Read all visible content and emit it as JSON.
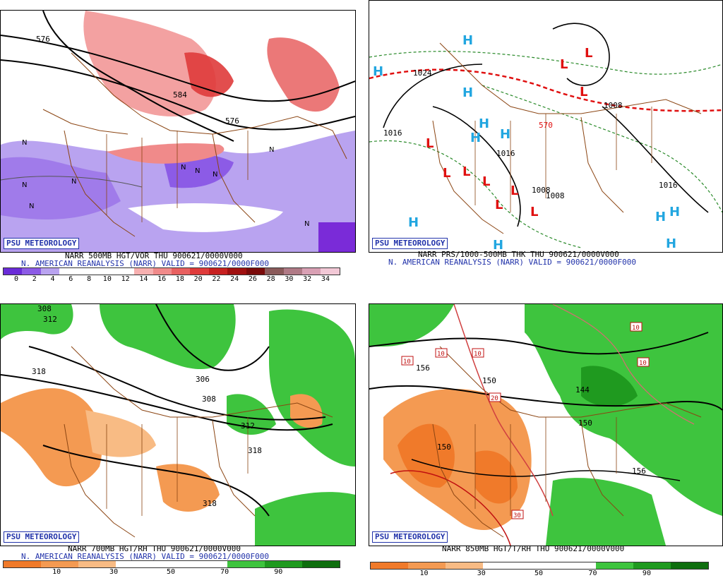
{
  "badge": "PSU METEOROLOGY",
  "panels": [
    {
      "id": "p500",
      "title": "NARR 500MB HGT/VOR THU 900621/0000V000",
      "subtitle": "N. AMERICAN REANALYSIS (NARR) VALID = 900621/0000F000",
      "colorbar_ticks": [
        "0",
        "2",
        "4",
        "6",
        "8",
        "10",
        "12",
        "14",
        "16",
        "18",
        "20",
        "22",
        "24",
        "26",
        "28",
        "30",
        "32",
        "34"
      ],
      "contour_labels": [
        "576",
        "584",
        "576"
      ],
      "marker_letter": "N"
    },
    {
      "id": "pprs",
      "title": "NARR PRS/1000-500MB THK THU 900621/0000V000",
      "subtitle": "N. AMERICAN REANALYSIS (NARR) VALID = 900621/0000F000",
      "contour_labels": [
        "1024",
        "1016",
        "1016",
        "1008",
        "1008",
        "1008",
        "1016",
        "570"
      ],
      "high_letter": "H",
      "low_letter": "L"
    },
    {
      "id": "p700",
      "title": "NARR 700MB HGT/RH THU 900621/0000V000",
      "subtitle": "N. AMERICAN REANALYSIS (NARR) VALID = 900621/0000F000",
      "colorbar_ticks": [
        "10",
        "30",
        "50",
        "70",
        "90"
      ],
      "contour_labels": [
        "308",
        "312",
        "318",
        "306",
        "308",
        "312",
        "318",
        "318"
      ]
    },
    {
      "id": "p850",
      "title": "NARR 850MB HGT/T/RH THU 900621/0000V000",
      "colorbar_ticks": [
        "10",
        "30",
        "50",
        "70",
        "90"
      ],
      "contour_labels": [
        "156",
        "150",
        "144",
        "150",
        "150",
        "156"
      ],
      "temp_labels": [
        "10",
        "10",
        "10",
        "10",
        "10",
        "20",
        "30"
      ]
    }
  ],
  "colors": {
    "vor_scale": [
      "#6a2bd8",
      "#8c5be6",
      "#b9a3f0",
      "#ffffff",
      "#ffffff",
      "#ffffff",
      "#ffffff",
      "#f7b0b0",
      "#f08a8a",
      "#e86060",
      "#df3b3b",
      "#c72020",
      "#a01010",
      "#7a0a0a",
      "#8a5a5a",
      "#b07a86",
      "#d9a0b4",
      "#f2c8d6"
    ],
    "rh_scale": [
      "#f07a2a",
      "#f49a52",
      "#f8bb84",
      "#ffffff",
      "#ffffff",
      "#ffffff",
      "#3ec43e",
      "#1f9a1f",
      "#0e6e0e"
    ],
    "border": "#8b4513",
    "high": "#22a6e0",
    "low": "#e01010",
    "thickness_dash": "#2a8a2a",
    "link_blue": "#2233aa"
  }
}
